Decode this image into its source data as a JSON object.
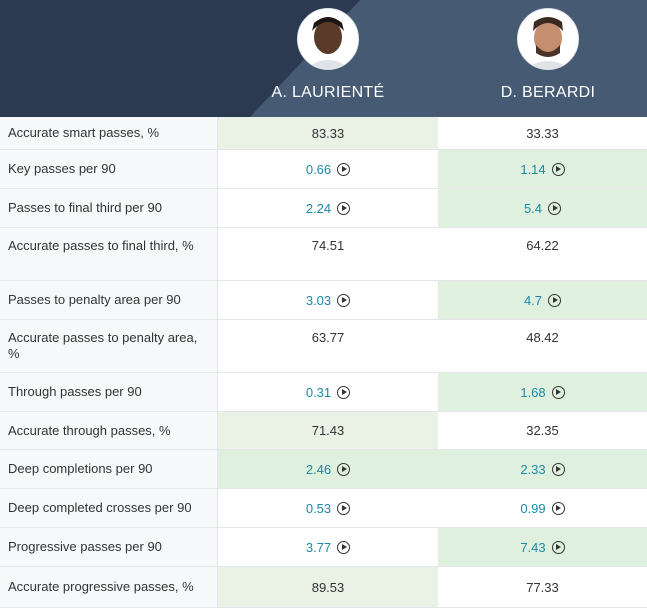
{
  "players": [
    {
      "name": "A. LAURIENTÉ",
      "avatar_icon": "player-photo-icon"
    },
    {
      "name": "D. BERARDI",
      "avatar_icon": "player-photo-icon"
    }
  ],
  "rows": [
    {
      "label": "Accurate smart passes, %",
      "v1": "83.33",
      "v2": "33.33",
      "play": false,
      "best": 1
    },
    {
      "label": "Key passes per 90",
      "v1": "0.66",
      "v2": "1.14",
      "play": true,
      "best": 2
    },
    {
      "label": "Passes to final third per 90",
      "v1": "2.24",
      "v2": "5.4",
      "play": true,
      "best": 2
    },
    {
      "label": "Accurate passes to final third, %",
      "v1": "74.51",
      "v2": "64.22",
      "play": false,
      "best": 0
    },
    {
      "label": "Passes to penalty area per 90",
      "v1": "3.03",
      "v2": "4.7",
      "play": true,
      "best": 2
    },
    {
      "label": "Accurate passes to penalty area, %",
      "v1": "63.77",
      "v2": "48.42",
      "play": false,
      "best": 0
    },
    {
      "label": "Through passes per 90",
      "v1": "0.31",
      "v2": "1.68",
      "play": true,
      "best": 2
    },
    {
      "label": "Accurate through passes, %",
      "v1": "71.43",
      "v2": "32.35",
      "play": false,
      "best": 1
    },
    {
      "label": "Deep completions per 90",
      "v1": "2.46",
      "v2": "2.33",
      "play": true,
      "best": 3
    },
    {
      "label": "Deep completed crosses per 90",
      "v1": "0.53",
      "v2": "0.99",
      "play": true,
      "best": 0
    },
    {
      "label": "Progressive passes per 90",
      "v1": "3.77",
      "v2": "7.43",
      "play": true,
      "best": 2
    },
    {
      "label": "Accurate progressive passes, %",
      "v1": "89.53",
      "v2": "77.33",
      "play": false,
      "best": 1
    }
  ],
  "colors": {
    "header_bg": "#2b3a50",
    "link_value": "#1a8aa5",
    "highlight": "#dff0df"
  }
}
